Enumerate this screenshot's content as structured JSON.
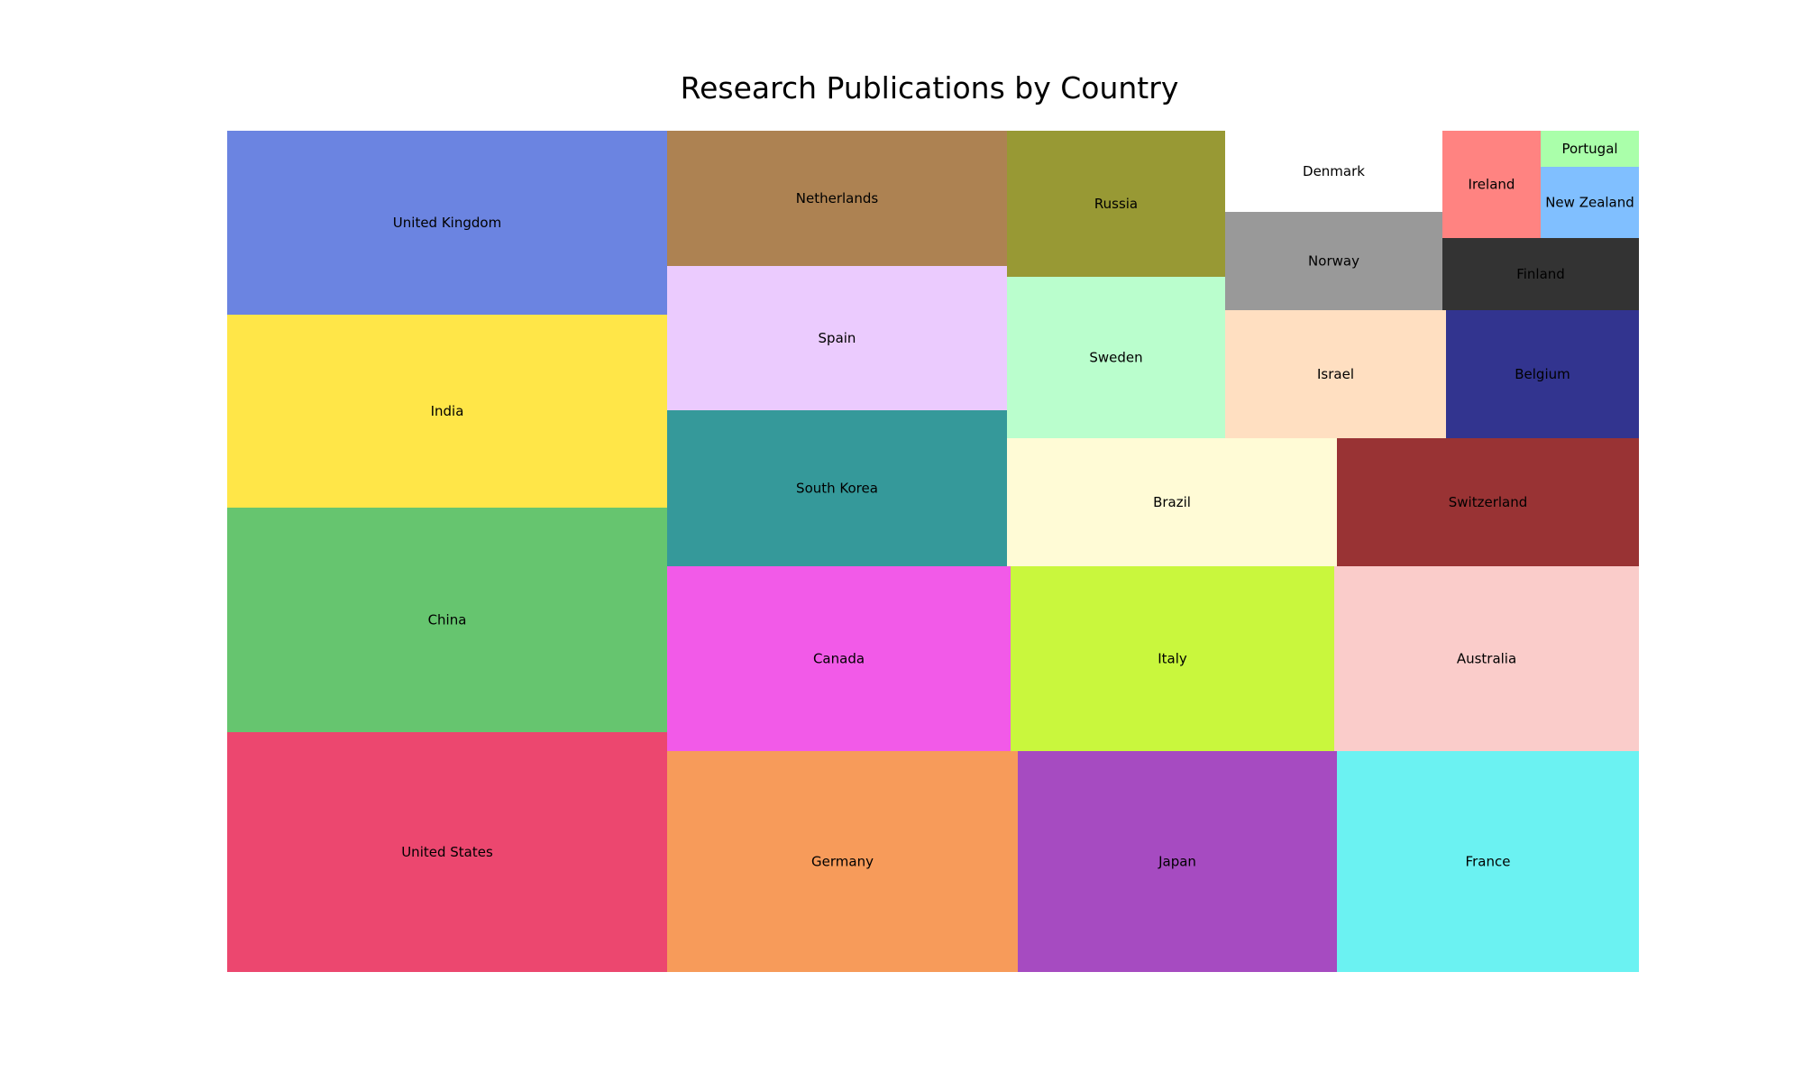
{
  "chart_data": {
    "type": "treemap",
    "title": "Research Publications by Country",
    "items": [
      {
        "label": "United States",
        "color": "#ec476f"
      },
      {
        "label": "China",
        "color": "#66c56f"
      },
      {
        "label": "India",
        "color": "#ffe648"
      },
      {
        "label": "United Kingdom",
        "color": "#6b84e1"
      },
      {
        "label": "Germany",
        "color": "#f79b5a"
      },
      {
        "label": "Japan",
        "color": "#a64bc1"
      },
      {
        "label": "France",
        "color": "#6bf2f2"
      },
      {
        "label": "Canada",
        "color": "#f25ae8"
      },
      {
        "label": "Italy",
        "color": "#c9f73d"
      },
      {
        "label": "Australia",
        "color": "#faccca"
      },
      {
        "label": "South Korea",
        "color": "#35999a"
      },
      {
        "label": "Spain",
        "color": "#ebcbfe"
      },
      {
        "label": "Netherlands",
        "color": "#ad8252"
      },
      {
        "label": "Brazil",
        "color": "#fffbd6"
      },
      {
        "label": "Switzerland",
        "color": "#993334"
      },
      {
        "label": "Sweden",
        "color": "#bafecd"
      },
      {
        "label": "Russia",
        "color": "#989934"
      },
      {
        "label": "Israel",
        "color": "#ffdfc1"
      },
      {
        "label": "Belgium",
        "color": "#32348f"
      },
      {
        "label": "Denmark",
        "color": "#ffffff"
      },
      {
        "label": "Norway",
        "color": "#999999"
      },
      {
        "label": "Finland",
        "color": "#333333"
      },
      {
        "label": "Ireland",
        "color": "#ff8381"
      },
      {
        "label": "New Zealand",
        "color": "#80bfff"
      },
      {
        "label": "Portugal",
        "color": "#aaffaa"
      }
    ]
  }
}
